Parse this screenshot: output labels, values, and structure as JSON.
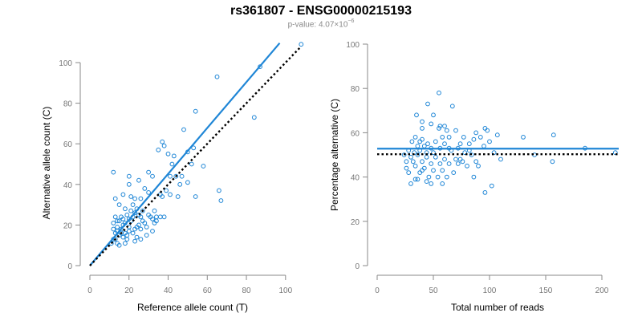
{
  "header": {
    "title": "rs361807 - ENSG00000215193",
    "pvalue_prefix": "p-value: ",
    "pvalue_mantissa": "4.07×10",
    "pvalue_exponent": "−6"
  },
  "colors": {
    "points": "#1f86d6",
    "fit_line": "#1f86d6",
    "reference_line": "#000000",
    "axis": "#888888",
    "tick_label": "#777777"
  },
  "chart_data": [
    {
      "type": "scatter",
      "xlabel": "Reference allele count (T)",
      "ylabel": "Alternative allele count (C)",
      "xlim": [
        0,
        105
      ],
      "ylim": [
        0,
        100
      ],
      "xticks": [
        0,
        20,
        40,
        60,
        80,
        100
      ],
      "yticks": [
        0,
        20,
        40,
        60,
        80,
        100
      ],
      "points": [
        [
          108,
          109
        ],
        [
          87,
          98
        ],
        [
          65,
          93
        ],
        [
          84,
          73
        ],
        [
          54,
          76
        ],
        [
          37,
          61
        ],
        [
          38,
          59
        ],
        [
          48,
          67
        ],
        [
          30,
          46
        ],
        [
          32,
          44
        ],
        [
          12,
          46
        ],
        [
          35,
          57
        ],
        [
          40,
          55
        ],
        [
          43,
          54
        ],
        [
          50,
          56
        ],
        [
          53,
          58
        ],
        [
          58,
          49
        ],
        [
          52,
          50
        ],
        [
          42,
          50
        ],
        [
          41,
          44
        ],
        [
          44,
          44
        ],
        [
          47,
          44
        ],
        [
          46,
          40
        ],
        [
          50,
          41
        ],
        [
          36,
          35
        ],
        [
          39,
          37
        ],
        [
          41,
          35
        ],
        [
          45,
          34
        ],
        [
          54,
          34
        ],
        [
          66,
          37
        ],
        [
          67,
          32
        ],
        [
          38,
          24
        ],
        [
          30,
          36
        ],
        [
          28,
          38
        ],
        [
          25,
          42
        ],
        [
          20,
          44
        ],
        [
          20,
          40
        ],
        [
          17,
          35
        ],
        [
          21,
          34
        ],
        [
          23,
          33
        ],
        [
          26,
          33
        ],
        [
          22,
          30
        ],
        [
          24,
          28
        ],
        [
          27,
          27
        ],
        [
          30,
          25
        ],
        [
          33,
          27
        ],
        [
          15,
          30
        ],
        [
          13,
          33
        ],
        [
          18,
          28
        ],
        [
          19,
          25
        ],
        [
          16,
          24
        ],
        [
          15,
          22
        ],
        [
          17,
          23
        ],
        [
          14,
          22
        ],
        [
          13,
          24
        ],
        [
          12,
          21
        ],
        [
          12,
          18
        ],
        [
          13,
          16
        ],
        [
          14,
          17
        ],
        [
          15,
          15
        ],
        [
          16,
          18
        ],
        [
          17,
          20
        ],
        [
          18,
          21
        ],
        [
          18,
          16
        ],
        [
          19,
          13
        ],
        [
          20,
          19
        ],
        [
          21,
          22
        ],
        [
          22,
          24
        ],
        [
          23,
          18
        ],
        [
          24,
          14
        ],
        [
          25,
          20
        ],
        [
          26,
          24
        ],
        [
          27,
          22
        ],
        [
          28,
          21
        ],
        [
          29,
          19
        ],
        [
          31,
          24
        ],
        [
          32,
          23
        ],
        [
          33,
          21
        ],
        [
          34,
          22
        ],
        [
          36,
          24
        ],
        [
          26,
          13
        ],
        [
          15,
          10
        ],
        [
          11,
          11
        ],
        [
          13,
          13
        ],
        [
          17,
          14
        ],
        [
          19,
          15
        ],
        [
          14,
          19
        ],
        [
          16,
          16
        ],
        [
          20,
          17
        ],
        [
          22,
          16
        ],
        [
          24,
          19
        ],
        [
          26,
          18
        ],
        [
          21,
          27
        ],
        [
          23,
          26
        ],
        [
          25,
          25
        ],
        [
          29,
          15
        ],
        [
          32,
          17
        ],
        [
          34,
          24
        ],
        [
          37,
          34
        ],
        [
          20,
          23
        ],
        [
          18,
          11
        ],
        [
          23,
          12
        ],
        [
          12,
          13
        ],
        [
          14,
          11
        ]
      ],
      "fit_line": {
        "slope": 1.13,
        "intercept": 0,
        "x_range": [
          0,
          97
        ]
      },
      "reference_line": {
        "slope": 1.0,
        "intercept": 0,
        "x_range": [
          0,
          108
        ]
      }
    },
    {
      "type": "scatter",
      "xlabel": "Total number of reads",
      "ylabel": "Percentage alternative (C)",
      "xlim": [
        0,
        215
      ],
      "ylim": [
        0,
        100
      ],
      "xticks": [
        0,
        50,
        100,
        150,
        200
      ],
      "yticks": [
        0,
        20,
        40,
        60,
        80,
        100
      ],
      "points": [
        [
          55,
          78
        ],
        [
          45,
          73
        ],
        [
          67,
          72
        ],
        [
          35,
          68
        ],
        [
          50,
          68
        ],
        [
          40,
          65
        ],
        [
          48,
          64
        ],
        [
          56,
          63
        ],
        [
          60,
          63
        ],
        [
          40,
          62
        ],
        [
          55,
          62
        ],
        [
          62,
          61
        ],
        [
          70,
          61
        ],
        [
          88,
          60
        ],
        [
          96,
          62
        ],
        [
          98,
          61
        ],
        [
          107,
          59
        ],
        [
          130,
          58
        ],
        [
          157,
          59
        ],
        [
          34,
          58
        ],
        [
          40,
          57
        ],
        [
          58,
          58
        ],
        [
          64,
          58
        ],
        [
          77,
          58
        ],
        [
          86,
          57
        ],
        [
          92,
          58
        ],
        [
          31,
          56
        ],
        [
          38,
          56
        ],
        [
          45,
          55
        ],
        [
          52,
          56
        ],
        [
          60,
          55
        ],
        [
          74,
          55
        ],
        [
          82,
          55
        ],
        [
          100,
          56
        ],
        [
          36,
          54
        ],
        [
          42,
          54
        ],
        [
          48,
          53
        ],
        [
          56,
          53
        ],
        [
          64,
          53
        ],
        [
          72,
          53
        ],
        [
          95,
          54
        ],
        [
          28,
          52
        ],
        [
          33,
          51
        ],
        [
          38,
          52
        ],
        [
          44,
          51
        ],
        [
          50,
          51
        ],
        [
          66,
          52
        ],
        [
          78,
          51
        ],
        [
          84,
          50
        ],
        [
          104,
          51
        ],
        [
          140,
          50
        ],
        [
          185,
          53
        ],
        [
          212,
          51
        ],
        [
          24,
          50
        ],
        [
          30,
          49
        ],
        [
          36,
          50
        ],
        [
          44,
          49
        ],
        [
          52,
          49
        ],
        [
          60,
          48
        ],
        [
          70,
          48
        ],
        [
          76,
          47
        ],
        [
          88,
          47
        ],
        [
          110,
          48
        ],
        [
          26,
          47
        ],
        [
          32,
          47
        ],
        [
          40,
          47
        ],
        [
          48,
          46
        ],
        [
          56,
          46
        ],
        [
          64,
          46
        ],
        [
          72,
          46
        ],
        [
          80,
          45
        ],
        [
          90,
          45
        ],
        [
          34,
          45
        ],
        [
          42,
          44
        ],
        [
          50,
          43
        ],
        [
          58,
          43
        ],
        [
          68,
          42
        ],
        [
          28,
          42
        ],
        [
          38,
          42
        ],
        [
          46,
          40
        ],
        [
          54,
          40
        ],
        [
          62,
          40
        ],
        [
          86,
          40
        ],
        [
          156,
          47
        ],
        [
          36,
          39
        ],
        [
          44,
          38
        ],
        [
          58,
          37
        ],
        [
          30,
          37
        ],
        [
          48,
          37
        ],
        [
          102,
          36
        ],
        [
          96,
          33
        ],
        [
          34,
          39
        ],
        [
          40,
          43
        ],
        [
          74,
          48
        ],
        [
          26,
          44
        ],
        [
          82,
          52
        ]
      ],
      "fit_line": {
        "slope": 0,
        "intercept": 52.8,
        "x_range": [
          0,
          215
        ]
      },
      "reference_line": {
        "slope": 0,
        "intercept": 50.3,
        "x_range": [
          0,
          215
        ]
      }
    }
  ]
}
